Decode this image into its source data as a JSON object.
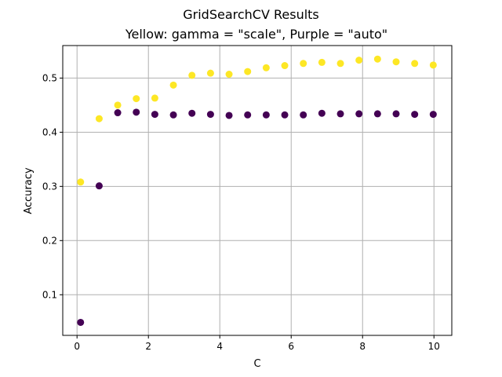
{
  "chart_data": {
    "type": "scatter",
    "title": "GridSearchCV Results",
    "subtitle": "Yellow: gamma = \"scale\", Purple = \"auto\"",
    "xlabel": "C",
    "ylabel": "Accuracy",
    "xlim": [
      -0.4,
      10.5
    ],
    "ylim": [
      0.025,
      0.56
    ],
    "xticks": [
      0,
      2,
      4,
      6,
      8,
      10
    ],
    "yticks": [
      0.1,
      0.2,
      0.3,
      0.4,
      0.5
    ],
    "grid": true,
    "series": [
      {
        "color": "#fde725",
        "x": [
          0.1,
          0.62,
          1.14,
          1.66,
          2.18,
          2.7,
          3.22,
          3.74,
          4.26,
          4.78,
          5.3,
          5.82,
          6.34,
          6.86,
          7.38,
          7.9,
          8.42,
          8.94,
          9.46,
          9.98
        ],
        "y": [
          0.308,
          0.425,
          0.45,
          0.462,
          0.463,
          0.487,
          0.505,
          0.509,
          0.507,
          0.512,
          0.519,
          0.523,
          0.527,
          0.529,
          0.527,
          0.533,
          0.535,
          0.53,
          0.527,
          0.524
        ]
      },
      {
        "color": "#440154",
        "x": [
          0.1,
          0.62,
          1.14,
          1.66,
          2.18,
          2.7,
          3.22,
          3.74,
          4.26,
          4.78,
          5.3,
          5.82,
          6.34,
          6.86,
          7.38,
          7.9,
          8.42,
          8.94,
          9.46,
          9.98
        ],
        "y": [
          0.049,
          0.301,
          0.436,
          0.437,
          0.433,
          0.432,
          0.435,
          0.433,
          0.431,
          0.432,
          0.432,
          0.432,
          0.432,
          0.435,
          0.434,
          0.434,
          0.434,
          0.434,
          0.433,
          0.433
        ]
      }
    ]
  }
}
